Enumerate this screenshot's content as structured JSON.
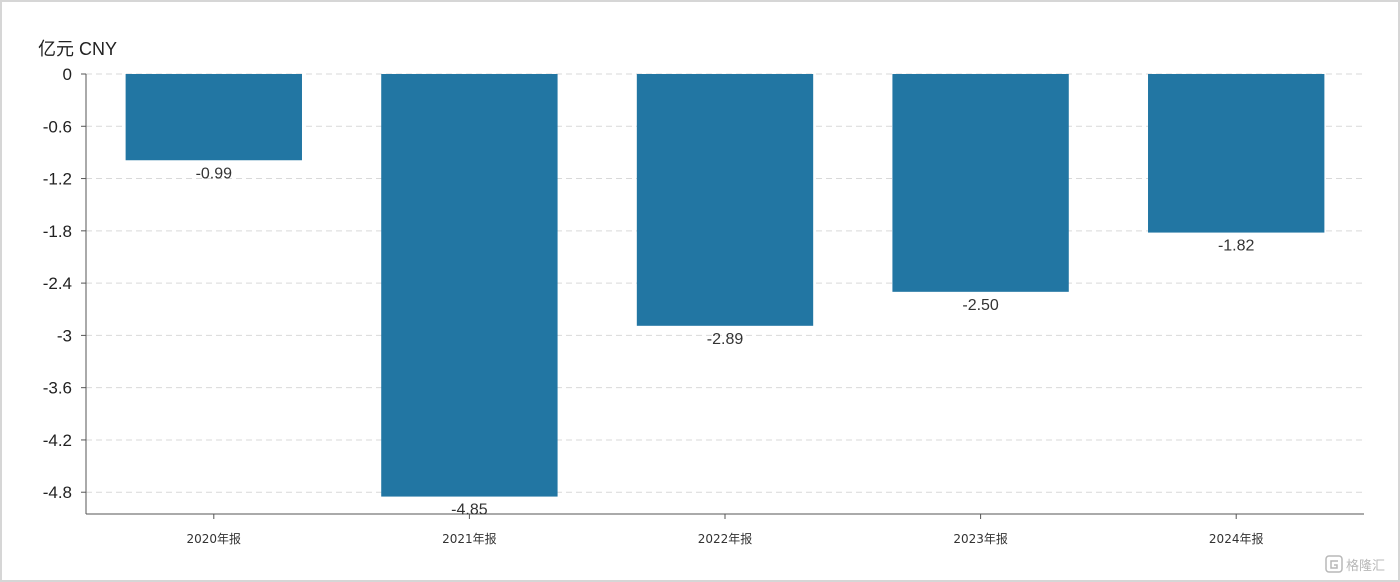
{
  "chart_data": {
    "type": "bar",
    "unit_label": "亿元  CNY",
    "categories": [
      "2020年报",
      "2021年报",
      "2022年报",
      "2023年报",
      "2024年报"
    ],
    "values": [
      -0.99,
      -4.85,
      -2.89,
      -2.5,
      -1.82
    ],
    "value_labels": [
      "-0.99",
      "-4.85",
      "-2.89",
      "-2.50",
      "-1.82"
    ],
    "yticks": [
      "0",
      "-0.6",
      "-1.2",
      "-1.8",
      "-2.4",
      "-3",
      "-3.6",
      "-4.2",
      "-4.8"
    ],
    "ytick_values": [
      0,
      -0.6,
      -1.2,
      -1.8,
      -2.4,
      -3,
      -3.6,
      -4.2,
      -4.8
    ],
    "ylim": [
      -5.05,
      0
    ],
    "grid": true,
    "bar_color": "#2276a3",
    "grid_color": "#d9d9d9",
    "axis_color": "#555555"
  },
  "watermark": {
    "icon": "gelonghui-logo-icon",
    "text": "格隆汇"
  }
}
